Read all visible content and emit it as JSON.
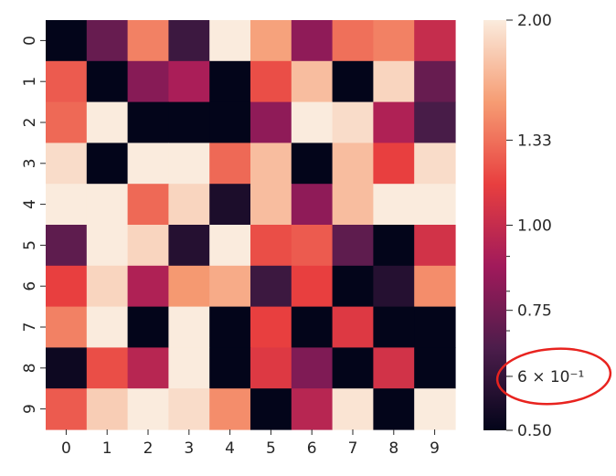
{
  "chart_data": {
    "type": "heatmap",
    "x_labels": [
      "0",
      "1",
      "2",
      "3",
      "4",
      "5",
      "6",
      "7",
      "8",
      "9"
    ],
    "y_labels": [
      "0",
      "1",
      "2",
      "3",
      "4",
      "5",
      "6",
      "7",
      "8",
      "9"
    ],
    "values": [
      [
        0.5,
        0.72,
        1.4,
        0.62,
        2.0,
        1.55,
        0.82,
        1.33,
        1.4,
        1.0
      ],
      [
        1.25,
        0.5,
        0.8,
        0.9,
        0.5,
        1.2,
        1.7,
        0.5,
        1.85,
        0.72
      ],
      [
        1.3,
        2.0,
        0.5,
        0.5,
        0.5,
        0.82,
        2.0,
        1.9,
        0.92,
        0.65
      ],
      [
        1.9,
        0.5,
        2.0,
        2.0,
        1.3,
        1.7,
        0.5,
        1.7,
        1.15,
        1.9
      ],
      [
        2.0,
        2.0,
        1.3,
        1.85,
        0.55,
        1.7,
        0.82,
        1.7,
        2.0,
        2.0
      ],
      [
        0.7,
        2.0,
        1.85,
        0.57,
        2.0,
        1.2,
        1.25,
        0.7,
        0.5,
        1.05
      ],
      [
        1.15,
        1.85,
        0.92,
        1.5,
        1.6,
        0.62,
        1.15,
        0.5,
        0.57,
        1.45
      ],
      [
        1.4,
        2.0,
        0.5,
        2.0,
        0.5,
        1.15,
        0.5,
        1.1,
        0.5,
        0.5
      ],
      [
        0.52,
        1.2,
        0.95,
        2.0,
        0.5,
        1.1,
        0.78,
        0.5,
        1.05,
        0.5
      ],
      [
        1.25,
        1.8,
        2.0,
        1.9,
        1.45,
        0.5,
        0.95,
        1.95,
        0.5,
        2.0
      ]
    ],
    "colorbar": {
      "scale": "log",
      "range": [
        0.5,
        2.0
      ],
      "ticks": [
        {
          "value": 2.0,
          "label": "2.00"
        },
        {
          "value": 1.333,
          "label": "1.33"
        },
        {
          "value": 1.0,
          "label": "1.00"
        },
        {
          "value": 0.75,
          "label": "0.75"
        },
        {
          "value": 0.6,
          "label": "6 × 10⁻¹"
        },
        {
          "value": 0.5,
          "label": "0.50"
        }
      ],
      "minor_ticks": [
        0.6,
        0.7,
        0.8,
        0.9
      ]
    },
    "colormap": [
      "#03051a",
      "#4c1d4b",
      "#a11a5b",
      "#e83f3f",
      "#f69c73",
      "#faebdd"
    ],
    "annotation": {
      "type": "ellipse",
      "color": "#e8231f",
      "target": "colorbar-tick-0.6"
    }
  }
}
